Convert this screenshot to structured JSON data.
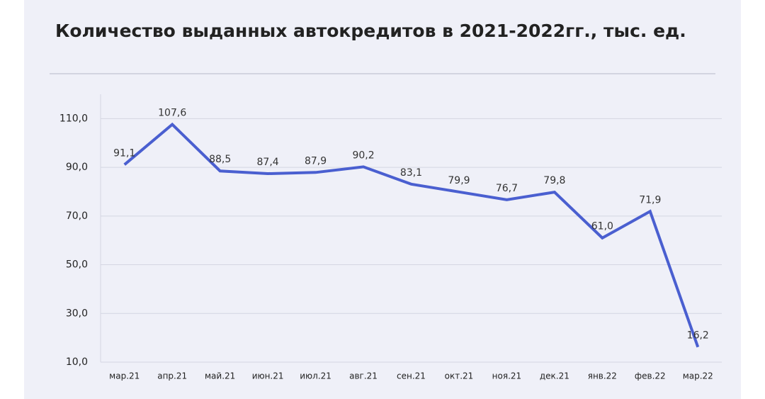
{
  "chart_data": {
    "type": "line",
    "title": "Количество выданных автокредитов в 2021-2022гг., тыс. ед.",
    "categories": [
      "мар.21",
      "апр.21",
      "май.21",
      "июн.21",
      "июл.21",
      "авг.21",
      "сен.21",
      "окт.21",
      "ноя.21",
      "дек.21",
      "янв.22",
      "фев.22",
      "мар.22"
    ],
    "series": [
      {
        "name": "Количество выданных автокредитов",
        "color": "#4a5fd0",
        "values": [
          91.1,
          107.6,
          88.5,
          87.4,
          87.9,
          90.2,
          83.1,
          79.9,
          76.7,
          79.8,
          61.0,
          71.9,
          16.2
        ],
        "value_labels": [
          "91,1",
          "107,6",
          "88,5",
          "87,4",
          "87,9",
          "90,2",
          "83,1",
          "79,9",
          "76,7",
          "79,8",
          "61,0",
          "71,9",
          "16,2"
        ]
      }
    ],
    "ylim": [
      10,
      120
    ],
    "yticks": [
      {
        "value": 10,
        "label": "10,0"
      },
      {
        "value": 30,
        "label": "30,0"
      },
      {
        "value": 50,
        "label": "50,0"
      },
      {
        "value": 70,
        "label": "70,0"
      },
      {
        "value": 90,
        "label": "90,0"
      },
      {
        "value": 110,
        "label": "110,0"
      }
    ],
    "grid": true
  }
}
